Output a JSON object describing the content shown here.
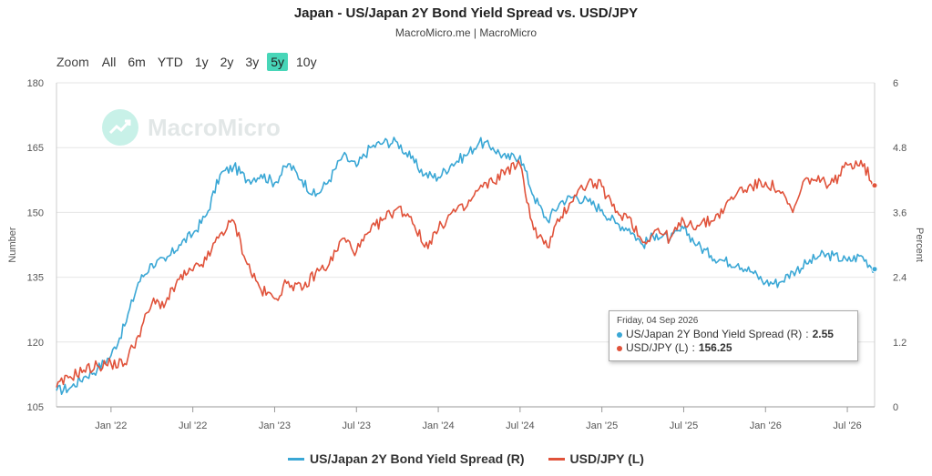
{
  "title": "Japan - US/Japan 2Y Bond Yield Spread vs. USD/JPY",
  "subtitle": "MacroMicro.me | MacroMicro",
  "watermark": "MacroMicro",
  "zoom": {
    "label": "Zoom",
    "options": [
      "All",
      "6m",
      "YTD",
      "1y",
      "2y",
      "3y",
      "5y",
      "10y"
    ],
    "selected": "5y"
  },
  "tooltip": {
    "date": "Friday, 04 Sep 2026",
    "rows": [
      {
        "name": "US/Japan 2Y Bond Yield Spread (R)",
        "value": "2.55",
        "color": "#3aa7d5"
      },
      {
        "name": "USD/JPY (L)",
        "value": "156.25",
        "color": "#e0523a"
      }
    ]
  },
  "chart_data": {
    "type": "line",
    "x_tick_labels": [
      "Jan '22",
      "Jul '22",
      "Jan '23",
      "Jul '23",
      "Jan '24",
      "Jul '24",
      "Jan '25",
      "Jul '25",
      "Jan '26",
      "Jul '26"
    ],
    "y_left": {
      "label": "Number",
      "range": [
        105,
        180
      ],
      "ticks": [
        "105",
        "120",
        "135",
        "150",
        "165",
        "180"
      ]
    },
    "y_right": {
      "label": "Percent",
      "range": [
        0,
        6
      ],
      "ticks": [
        "0",
        "1.2",
        "2.4",
        "3.6",
        "4.8",
        "6"
      ]
    },
    "x_range": [
      "2021-09",
      "2026-09"
    ],
    "grid": true,
    "legend_position": "bottom",
    "series": [
      {
        "name": "US/Japan 2Y Bond Yield Spread (R)",
        "axis": "right",
        "color": "#3aa7d5",
        "x": [
          "2021-09",
          "2021-10",
          "2021-11",
          "2021-12",
          "2022-01",
          "2022-02",
          "2022-03",
          "2022-04",
          "2022-05",
          "2022-06",
          "2022-07",
          "2022-08",
          "2022-09",
          "2022-10",
          "2022-11",
          "2022-12",
          "2023-01",
          "2023-02",
          "2023-03",
          "2023-04",
          "2023-05",
          "2023-06",
          "2023-07",
          "2023-08",
          "2023-09",
          "2023-10",
          "2023-11",
          "2023-12",
          "2024-01",
          "2024-02",
          "2024-03",
          "2024-04",
          "2024-05",
          "2024-06",
          "2024-07",
          "2024-08",
          "2024-09",
          "2024-10",
          "2024-11",
          "2024-12",
          "2025-01",
          "2025-02",
          "2025-03",
          "2025-04",
          "2025-05",
          "2025-06",
          "2025-07",
          "2025-08",
          "2025-09",
          "2025-10",
          "2025-11",
          "2025-12",
          "2026-01",
          "2026-02",
          "2026-03",
          "2026-04",
          "2026-05",
          "2026-06",
          "2026-07",
          "2026-08",
          "2026-09"
        ],
        "y": [
          0.3,
          0.35,
          0.55,
          0.7,
          0.95,
          1.5,
          2.3,
          2.65,
          2.7,
          3.0,
          3.2,
          3.55,
          4.3,
          4.45,
          4.2,
          4.3,
          4.15,
          4.5,
          4.2,
          3.9,
          4.2,
          4.65,
          4.45,
          4.8,
          4.9,
          4.9,
          4.6,
          4.3,
          4.25,
          4.5,
          4.65,
          4.9,
          4.8,
          4.6,
          4.65,
          3.9,
          3.45,
          3.8,
          3.9,
          3.8,
          3.65,
          3.4,
          3.3,
          3.0,
          3.2,
          3.1,
          3.3,
          3.0,
          2.8,
          2.7,
          2.65,
          2.5,
          2.3,
          2.3,
          2.5,
          2.65,
          2.8,
          2.8,
          2.7,
          2.8,
          2.55
        ]
      },
      {
        "name": "USD/JPY (L)",
        "axis": "left",
        "color": "#e0523a",
        "x": [
          "2021-09",
          "2021-10",
          "2021-11",
          "2021-12",
          "2022-01",
          "2022-02",
          "2022-03",
          "2022-04",
          "2022-05",
          "2022-06",
          "2022-07",
          "2022-08",
          "2022-09",
          "2022-10",
          "2022-11",
          "2022-12",
          "2023-01",
          "2023-02",
          "2023-03",
          "2023-04",
          "2023-05",
          "2023-06",
          "2023-07",
          "2023-08",
          "2023-09",
          "2023-10",
          "2023-11",
          "2023-12",
          "2024-01",
          "2024-02",
          "2024-03",
          "2024-04",
          "2024-05",
          "2024-06",
          "2024-07",
          "2024-08",
          "2024-09",
          "2024-10",
          "2024-11",
          "2024-12",
          "2025-01",
          "2025-02",
          "2025-03",
          "2025-04",
          "2025-05",
          "2025-06",
          "2025-07",
          "2025-08",
          "2025-09",
          "2025-10",
          "2025-11",
          "2025-12",
          "2026-01",
          "2026-02",
          "2026-03",
          "2026-04",
          "2026-05",
          "2026-06",
          "2026-07",
          "2026-08",
          "2026-09"
        ],
        "y": [
          109.5,
          112,
          113.5,
          114.5,
          115,
          115,
          121.5,
          129,
          129,
          134.5,
          136.5,
          139,
          145,
          148,
          138,
          132,
          130,
          134,
          132,
          136,
          138,
          144,
          141,
          145.5,
          148.5,
          151,
          149,
          142,
          146,
          150,
          151,
          155.5,
          157,
          160,
          161,
          146,
          142,
          149,
          154,
          157,
          156,
          150,
          149,
          143,
          146,
          144,
          148,
          147,
          148,
          151,
          155,
          156,
          157,
          155,
          150,
          158,
          157,
          157,
          161,
          162,
          156.25
        ]
      }
    ]
  }
}
